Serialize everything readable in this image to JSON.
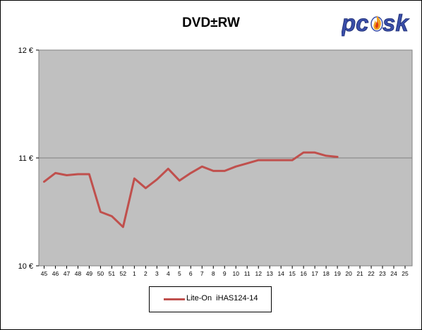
{
  "chart_data": {
    "type": "line",
    "title": "DVD±RW",
    "xlabel": "",
    "ylabel": "",
    "categories": [
      "45",
      "46",
      "47",
      "48",
      "49",
      "50",
      "51",
      "52",
      "1",
      "2",
      "3",
      "4",
      "5",
      "6",
      "7",
      "8",
      "9",
      "10",
      "11",
      "12",
      "13",
      "14",
      "15",
      "16",
      "17",
      "18",
      "19",
      "20",
      "21",
      "22",
      "23",
      "24",
      "25"
    ],
    "ylim": [
      10,
      12
    ],
    "y_ticks": [
      "10 €",
      "11 €",
      "12 €"
    ],
    "grid": "horizontal major lines",
    "legend_position": "bottom",
    "series": [
      {
        "name": "Lite-On  iHAS124-14",
        "color": "#c0504d",
        "values": [
          10.78,
          10.86,
          10.84,
          10.85,
          10.85,
          10.5,
          10.46,
          10.36,
          10.81,
          10.72,
          10.8,
          10.9,
          10.79,
          10.86,
          10.92,
          10.88,
          10.88,
          10.92,
          10.95,
          10.98,
          10.98,
          10.98,
          10.98,
          11.05,
          11.05,
          11.02,
          11.01,
          null,
          null,
          null,
          null,
          null,
          null
        ]
      }
    ]
  },
  "colors": {
    "plot_background": "#c0c0c0",
    "series": "#c0504d"
  },
  "logo": {
    "text": "pcask",
    "icon": "flame-icon"
  }
}
